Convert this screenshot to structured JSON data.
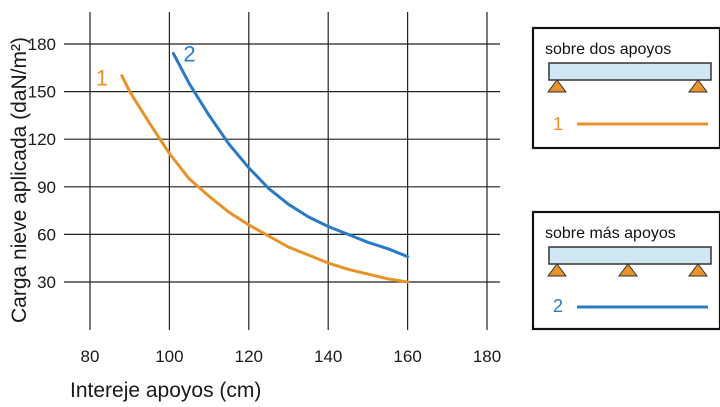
{
  "chart_data": {
    "type": "line",
    "xlabel": "Intereje apoyos (cm)",
    "ylabel": "Carga nieve aplicada  (daN/m²)",
    "xlim": [
      75,
      180
    ],
    "ylim": [
      0,
      190
    ],
    "x_ticks": [
      "80",
      "100",
      "120",
      "140",
      "160",
      "180"
    ],
    "y_ticks": [
      "30",
      "60",
      "90",
      "120",
      "150",
      "180"
    ],
    "grid": true,
    "series": [
      {
        "name": "1",
        "color": "#e8922a",
        "x": [
          88,
          90,
          95,
          100,
          105,
          110,
          115,
          120,
          125,
          130,
          135,
          140,
          145,
          150,
          155,
          160
        ],
        "y": [
          160,
          150,
          130,
          111,
          95,
          84,
          74,
          66,
          59,
          52,
          47,
          42,
          38,
          35,
          32,
          30
        ]
      },
      {
        "name": "2",
        "color": "#2a7bc4",
        "x": [
          101,
          105,
          110,
          115,
          120,
          125,
          130,
          135,
          140,
          145,
          150,
          155,
          160
        ],
        "y": [
          174,
          155,
          135,
          117,
          102,
          89,
          79,
          71,
          65,
          60,
          55,
          51,
          46
        ]
      }
    ]
  },
  "legend": {
    "box1": {
      "title": "sobre dos apoyos",
      "number": "1",
      "color": "#e8922a"
    },
    "box2": {
      "title": "sobre más apoyos",
      "number": "2",
      "color": "#2a7bc4"
    }
  },
  "colors": {
    "beam": "#cfe7f2",
    "support": "#e8922a"
  }
}
